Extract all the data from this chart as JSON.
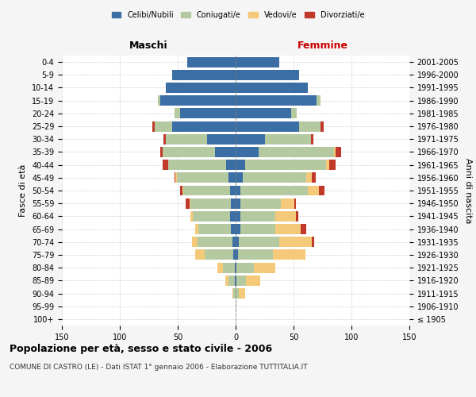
{
  "age_groups": [
    "100+",
    "95-99",
    "90-94",
    "85-89",
    "80-84",
    "75-79",
    "70-74",
    "65-69",
    "60-64",
    "55-59",
    "50-54",
    "45-49",
    "40-44",
    "35-39",
    "30-34",
    "25-29",
    "20-24",
    "15-19",
    "10-14",
    "5-9",
    "0-4"
  ],
  "birth_years": [
    "≤ 1905",
    "1906-1910",
    "1911-1915",
    "1916-1920",
    "1921-1925",
    "1926-1930",
    "1931-1935",
    "1936-1940",
    "1941-1945",
    "1946-1950",
    "1951-1955",
    "1956-1960",
    "1961-1965",
    "1966-1970",
    "1971-1975",
    "1976-1980",
    "1981-1985",
    "1986-1990",
    "1991-1995",
    "1996-2000",
    "2001-2005"
  ],
  "males": {
    "celibe": [
      0,
      0,
      0,
      1,
      1,
      2,
      3,
      4,
      5,
      4,
      5,
      6,
      8,
      18,
      25,
      55,
      48,
      65,
      60,
      55,
      42
    ],
    "coniugato": [
      0,
      0,
      2,
      5,
      10,
      25,
      30,
      28,
      32,
      35,
      40,
      45,
      50,
      45,
      35,
      15,
      5,
      2,
      0,
      0,
      0
    ],
    "vedovo": [
      0,
      0,
      1,
      3,
      5,
      8,
      5,
      3,
      2,
      1,
      1,
      1,
      0,
      0,
      0,
      0,
      0,
      0,
      0,
      0,
      0
    ],
    "divorziato": [
      0,
      0,
      0,
      0,
      0,
      0,
      0,
      0,
      0,
      3,
      2,
      1,
      5,
      2,
      2,
      2,
      0,
      0,
      0,
      0,
      0
    ]
  },
  "females": {
    "nubile": [
      0,
      0,
      0,
      1,
      1,
      2,
      3,
      4,
      4,
      4,
      4,
      6,
      8,
      20,
      25,
      55,
      48,
      70,
      62,
      55,
      38
    ],
    "coniugata": [
      0,
      1,
      3,
      8,
      15,
      30,
      35,
      30,
      30,
      35,
      58,
      55,
      70,
      65,
      40,
      18,
      5,
      3,
      0,
      0,
      0
    ],
    "vedova": [
      0,
      0,
      5,
      12,
      18,
      28,
      28,
      22,
      18,
      12,
      10,
      5,
      3,
      1,
      0,
      0,
      0,
      0,
      0,
      0,
      0
    ],
    "divorziata": [
      0,
      0,
      0,
      0,
      0,
      0,
      2,
      5,
      2,
      1,
      5,
      3,
      5,
      5,
      2,
      3,
      0,
      0,
      0,
      0,
      0
    ]
  },
  "colors": {
    "celibe": "#3a6ea5",
    "coniugato": "#b5c9a0",
    "vedovo": "#f5c97a",
    "divorziato": "#c0392b"
  },
  "xlim": 150,
  "title": "Popolazione per età, sesso e stato civile - 2006",
  "subtitle": "COMUNE DI CASTRO (LE) - Dati ISTAT 1° gennaio 2006 - Elaborazione TUTTITALIA.IT",
  "ylabel_left": "Fasce di età",
  "ylabel_right": "Anni di nascita",
  "xlabel_male": "Maschi",
  "xlabel_female": "Femmine",
  "background_color": "#f5f5f5",
  "plot_background": "#ffffff"
}
